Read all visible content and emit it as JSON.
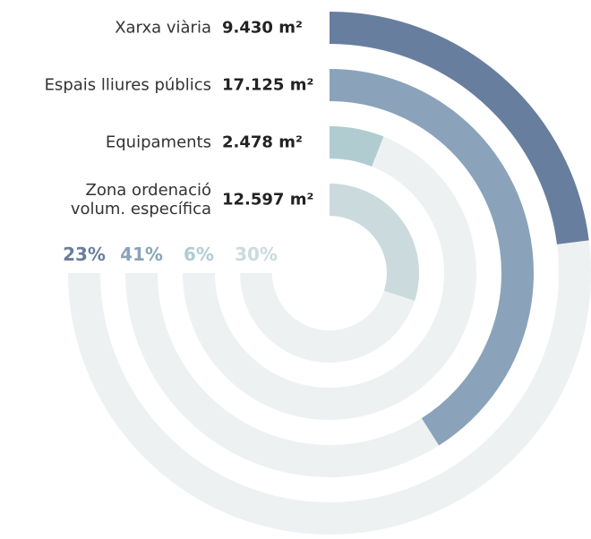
{
  "chart_data": {
    "type": "radial_bar",
    "categories": [
      "Xarxa viària",
      "Espais lliures públics",
      "Equipaments",
      "Zona ordenació\nvolum. específica"
    ],
    "values": [
      23,
      41,
      6,
      30
    ],
    "value_labels": [
      "23%",
      "41%",
      "6%",
      "30%"
    ],
    "areas": [
      9430,
      17125,
      2478,
      12597
    ],
    "area_labels": [
      "9.430 m²",
      "17.125 m²",
      "2.478 m²",
      "12.597 m²"
    ],
    "colors": [
      "#687e9e",
      "#8aa3bb",
      "#b0ccd1",
      "#cbdadd"
    ]
  }
}
